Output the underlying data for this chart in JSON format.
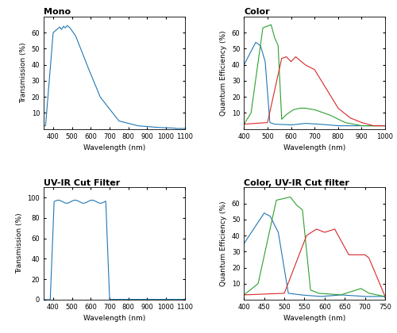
{
  "title_mono": "Mono",
  "title_color": "Color",
  "title_uvir": "UV-IR Cut Filter",
  "title_color_uvir": "Color, UV-IR Cut filter",
  "ylabel_mono": "Transmission (%)",
  "ylabel_color": "Quantum Efficiency (%)",
  "ylabel_uvir": "Transmission (%)",
  "ylabel_color_uvir": "Quantum Efficiency (%)",
  "xlabel": "Wavelength (nm)",
  "line_color_blue": "#1f77b4",
  "line_color_green": "#2ca02c",
  "line_color_red": "#d62728",
  "background": "#ffffff",
  "title_fontsize": 8,
  "label_fontsize": 6.5,
  "tick_fontsize": 6
}
